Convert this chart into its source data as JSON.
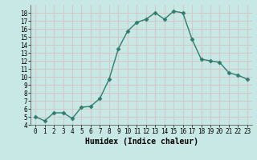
{
  "xlabel": "Humidex (Indice chaleur)",
  "x": [
    0,
    1,
    2,
    3,
    4,
    5,
    6,
    7,
    8,
    9,
    10,
    11,
    12,
    13,
    14,
    15,
    16,
    17,
    18,
    19,
    20,
    21,
    22,
    23
  ],
  "y": [
    5.0,
    4.5,
    5.5,
    5.5,
    4.8,
    6.2,
    6.3,
    7.3,
    9.7,
    13.5,
    15.7,
    16.8,
    17.2,
    18.0,
    17.2,
    18.2,
    18.0,
    14.7,
    12.2,
    12.0,
    11.8,
    10.5,
    10.2,
    9.7
  ],
  "line_color": "#2e7d6e",
  "marker": "D",
  "marker_size": 2.5,
  "bg_color": "#c8e8e5",
  "grid_color": "#d4c8c8",
  "ylim": [
    4,
    19
  ],
  "xlim": [
    -0.5,
    23.5
  ],
  "yticks": [
    4,
    5,
    6,
    7,
    8,
    9,
    10,
    11,
    12,
    13,
    14,
    15,
    16,
    17,
    18
  ],
  "xticks": [
    0,
    1,
    2,
    3,
    4,
    5,
    6,
    7,
    8,
    9,
    10,
    11,
    12,
    13,
    14,
    15,
    16,
    17,
    18,
    19,
    20,
    21,
    22,
    23
  ],
  "tick_label_fontsize": 5.5,
  "xlabel_fontsize": 7,
  "linewidth": 1.0
}
